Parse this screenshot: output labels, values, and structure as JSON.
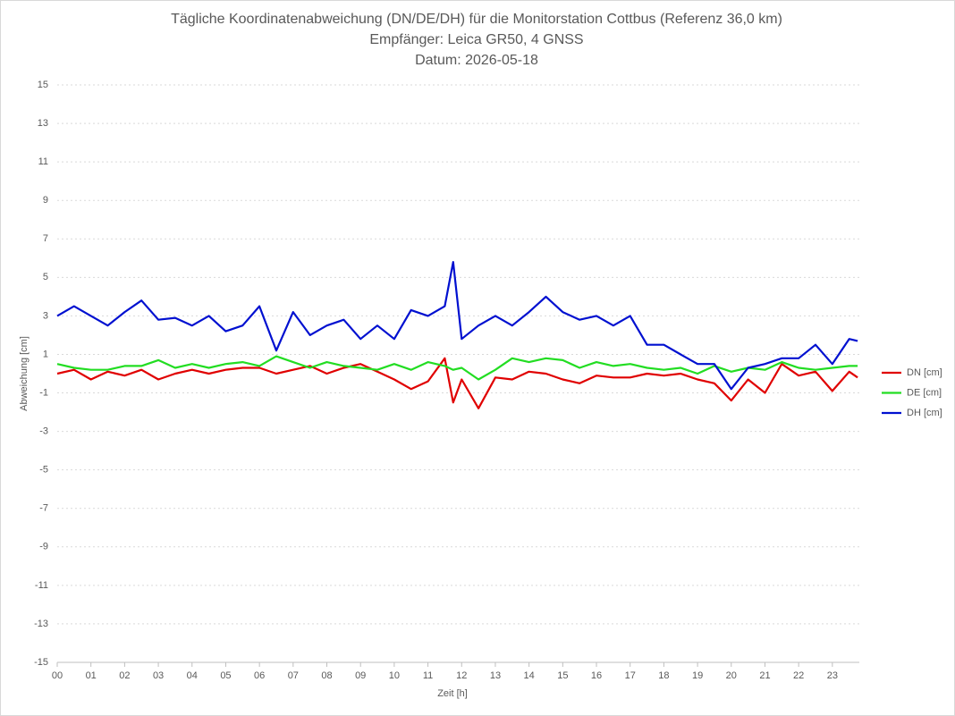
{
  "chart_data": {
    "type": "line",
    "title": "Tägliche Koordinatenabweichung (DN/DE/DH) für die Monitorstation Cottbus (Referenz 36,0 km)",
    "subtitle": "Empfänger: Leica GR50, 4 GNSS",
    "date_line": "Datum: 2026-05-18",
    "x_label": "Zeit [h]",
    "y_label": "Abweichung [cm]",
    "x": [
      0,
      0.5,
      1,
      1.5,
      2,
      2.5,
      3,
      3.5,
      4,
      4.5,
      5,
      5.5,
      6,
      6.5,
      7,
      7.5,
      8,
      8.5,
      9,
      9.5,
      10,
      10.5,
      11,
      11.5,
      11.75,
      12,
      12.5,
      13,
      13.5,
      14,
      14.5,
      15,
      15.5,
      16,
      16.5,
      17,
      17.5,
      18,
      18.5,
      19,
      19.5,
      20,
      20.5,
      21,
      21.5,
      22,
      22.5,
      23,
      23.5,
      23.75
    ],
    "series": [
      {
        "name": "DN [cm]",
        "color": "#e00000",
        "values": [
          0.0,
          0.2,
          -0.3,
          0.1,
          -0.1,
          0.2,
          -0.3,
          0.0,
          0.2,
          0.0,
          0.2,
          0.3,
          0.3,
          0.0,
          0.2,
          0.4,
          0.0,
          0.3,
          0.5,
          0.1,
          -0.3,
          -0.8,
          -0.4,
          0.8,
          -1.5,
          -0.3,
          -1.8,
          -0.2,
          -0.3,
          0.1,
          0.0,
          -0.3,
          -0.5,
          -0.1,
          -0.2,
          -0.2,
          0.0,
          -0.1,
          0.0,
          -0.3,
          -0.5,
          -1.4,
          -0.3,
          -1.0,
          0.5,
          -0.1,
          0.1,
          -0.9,
          0.1,
          -0.2
        ]
      },
      {
        "name": "DE [cm]",
        "color": "#22dd22",
        "values": [
          0.5,
          0.3,
          0.2,
          0.2,
          0.4,
          0.4,
          0.7,
          0.3,
          0.5,
          0.3,
          0.5,
          0.6,
          0.4,
          0.9,
          0.6,
          0.3,
          0.6,
          0.4,
          0.3,
          0.2,
          0.5,
          0.2,
          0.6,
          0.4,
          0.2,
          0.3,
          -0.3,
          0.2,
          0.8,
          0.6,
          0.8,
          0.7,
          0.3,
          0.6,
          0.4,
          0.5,
          0.3,
          0.2,
          0.3,
          0.0,
          0.4,
          0.1,
          0.3,
          0.2,
          0.6,
          0.3,
          0.2,
          0.3,
          0.4,
          0.4
        ]
      },
      {
        "name": "DH [cm]",
        "color": "#0010d0",
        "values": [
          3.0,
          3.5,
          3.0,
          2.5,
          3.2,
          3.8,
          2.8,
          2.9,
          2.5,
          3.0,
          2.2,
          2.5,
          3.5,
          1.2,
          3.2,
          2.0,
          2.5,
          2.8,
          1.8,
          2.5,
          1.8,
          3.3,
          3.0,
          3.5,
          5.8,
          1.8,
          2.5,
          3.0,
          2.5,
          3.2,
          4.0,
          3.2,
          2.8,
          3.0,
          2.5,
          3.0,
          1.5,
          1.5,
          1.0,
          0.5,
          0.5,
          -0.8,
          0.3,
          0.5,
          0.8,
          0.8,
          1.5,
          0.5,
          1.8,
          1.7
        ]
      }
    ],
    "xlim": [
      0,
      23.8
    ],
    "xticks": [
      {
        "value": 0,
        "label": "00"
      },
      {
        "value": 1,
        "label": "01"
      },
      {
        "value": 2,
        "label": "02"
      },
      {
        "value": 3,
        "label": "03"
      },
      {
        "value": 4,
        "label": "04"
      },
      {
        "value": 5,
        "label": "05"
      },
      {
        "value": 6,
        "label": "06"
      },
      {
        "value": 7,
        "label": "07"
      },
      {
        "value": 8,
        "label": "08"
      },
      {
        "value": 9,
        "label": "09"
      },
      10,
      11,
      12,
      13,
      14,
      15,
      16,
      17,
      18,
      19,
      20,
      21,
      22,
      23
    ],
    "ylim": [
      -15,
      15
    ],
    "yticks": [
      -15,
      -13,
      -11,
      -9,
      -7,
      -5,
      -3,
      -1,
      1,
      3,
      5,
      7,
      9,
      11,
      13,
      15
    ],
    "grid": true,
    "legend": "right"
  }
}
